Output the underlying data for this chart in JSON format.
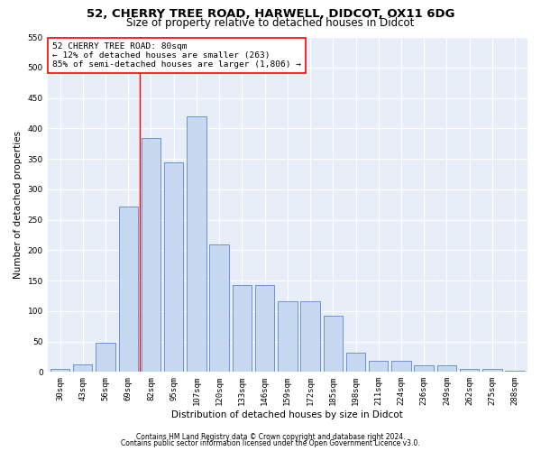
{
  "title1": "52, CHERRY TREE ROAD, HARWELL, DIDCOT, OX11 6DG",
  "title2": "Size of property relative to detached houses in Didcot",
  "xlabel": "Distribution of detached houses by size in Didcot",
  "ylabel": "Number of detached properties",
  "categories": [
    "30sqm",
    "43sqm",
    "56sqm",
    "69sqm",
    "82sqm",
    "95sqm",
    "107sqm",
    "120sqm",
    "133sqm",
    "146sqm",
    "159sqm",
    "172sqm",
    "185sqm",
    "198sqm",
    "211sqm",
    "224sqm",
    "236sqm",
    "249sqm",
    "262sqm",
    "275sqm",
    "288sqm"
  ],
  "bar_values": [
    5,
    12,
    48,
    272,
    384,
    344,
    420,
    210,
    143,
    143,
    116,
    116,
    92,
    31,
    18,
    18,
    11,
    11,
    5,
    5,
    2
  ],
  "bar_color": "#c6d9f0",
  "bar_edge_color": "#4472c4",
  "vline_x_idx": 4,
  "vline_color": "red",
  "annotation_text": "52 CHERRY TREE ROAD: 80sqm\n← 12% of detached houses are smaller (263)\n85% of semi-detached houses are larger (1,806) →",
  "annotation_box_color": "red",
  "background_color": "#e8eef8",
  "grid_color": "white",
  "ylim": [
    0,
    550
  ],
  "yticks": [
    0,
    50,
    100,
    150,
    200,
    250,
    300,
    350,
    400,
    450,
    500,
    550
  ],
  "footer1": "Contains HM Land Registry data © Crown copyright and database right 2024.",
  "footer2": "Contains public sector information licensed under the Open Government Licence v3.0.",
  "title1_fontsize": 9.5,
  "title2_fontsize": 8.5,
  "tick_fontsize": 6.5,
  "ylabel_fontsize": 7.5,
  "xlabel_fontsize": 7.5,
  "annotation_fontsize": 6.8,
  "footer_fontsize": 5.5
}
